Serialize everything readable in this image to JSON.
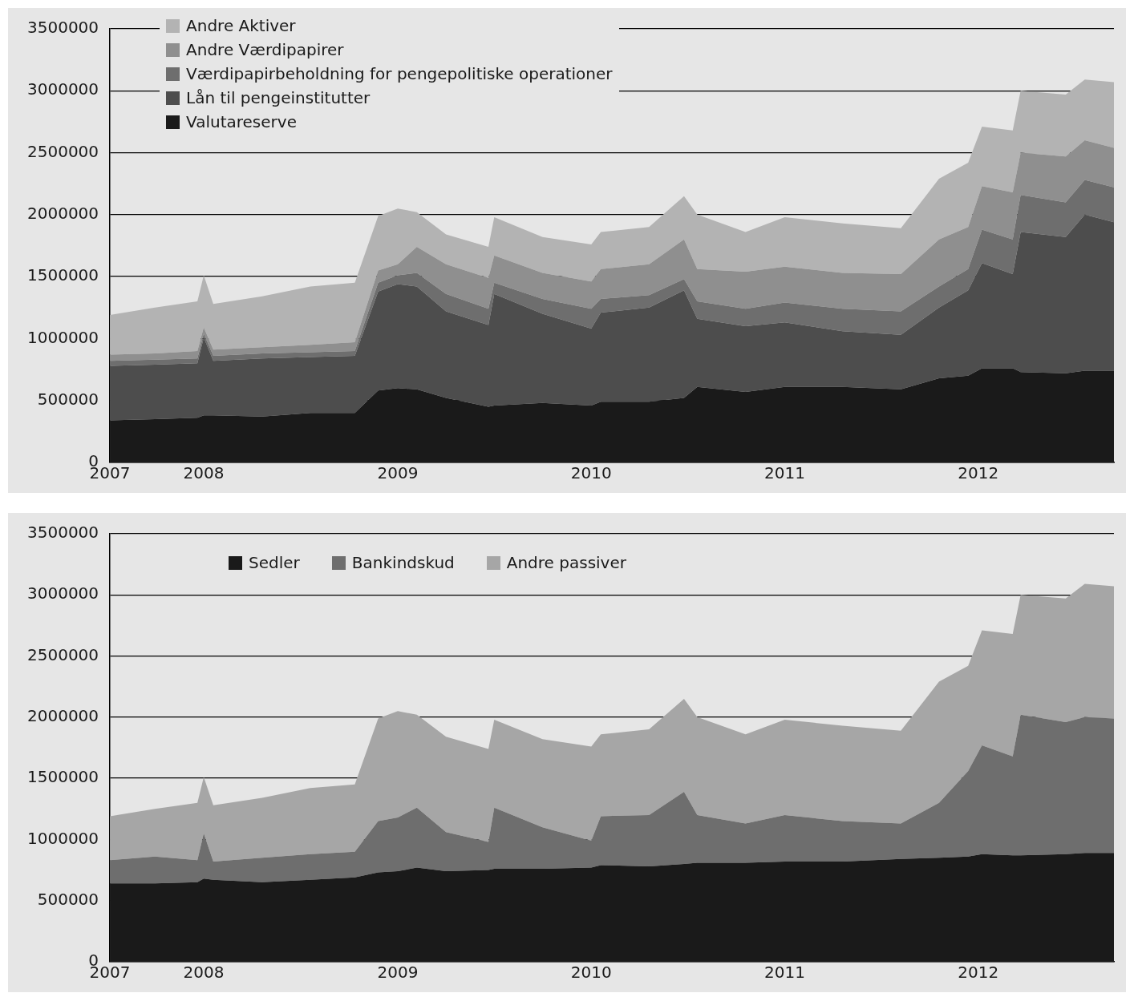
{
  "chart_data": [
    {
      "type": "area",
      "stacked": true,
      "legend": "top left",
      "grid": "y",
      "x": [
        "2007-07-08",
        "2007-10-01",
        "2007-12-20",
        "2008-01-01",
        "2008-01-19",
        "2008-04-20",
        "2008-07-20",
        "2008-10-12",
        "2008-11-25",
        "2009-01-01",
        "2009-02-06",
        "2009-04-02",
        "2009-06-21",
        "2009-07-02",
        "2009-10-01",
        "2010-01-01",
        "2010-01-19",
        "2010-04-20",
        "2010-06-25",
        "2010-07-20",
        "2010-10-19",
        "2011-01-01",
        "2011-04-20",
        "2011-08-08",
        "2011-10-19",
        "2011-12-13",
        "2012-01-08",
        "2012-03-06",
        "2012-03-21",
        "2012-06-14",
        "2012-07-20",
        "2012-09-13"
      ],
      "xlim": [
        "2007-07-08",
        "2012-09-13"
      ],
      "xticks": [
        {
          "value": "2007-07-08",
          "label": "2007"
        },
        "2008",
        "2009",
        "2010",
        "2011",
        "2012"
      ],
      "ylim": [
        0,
        3500000
      ],
      "yticks": [
        0,
        500000,
        1000000,
        1500000,
        2000000,
        2500000,
        3000000,
        3500000
      ],
      "series": [
        {
          "name": "Valutareserve",
          "color": "#1a1a1a",
          "values": [
            340000,
            350000,
            360000,
            380000,
            380000,
            370000,
            400000,
            400000,
            580000,
            600000,
            590000,
            520000,
            450000,
            460000,
            480000,
            460000,
            490000,
            490000,
            520000,
            610000,
            570000,
            610000,
            610000,
            590000,
            680000,
            700000,
            760000,
            760000,
            730000,
            720000,
            740000,
            740000
          ]
        },
        {
          "name": "Lån til pengeinstitutter",
          "color": "#4d4d4d",
          "values": [
            440000,
            440000,
            440000,
            630000,
            440000,
            470000,
            450000,
            460000,
            800000,
            840000,
            830000,
            700000,
            660000,
            900000,
            720000,
            620000,
            720000,
            760000,
            870000,
            550000,
            530000,
            520000,
            450000,
            440000,
            570000,
            690000,
            850000,
            760000,
            1130000,
            1100000,
            1260000,
            1200000
          ]
        },
        {
          "name": "Værdipapirbeholdning for pengepolitiske operationer",
          "color": "#6e6e6e",
          "values": [
            40000,
            40000,
            40000,
            30000,
            40000,
            40000,
            40000,
            40000,
            70000,
            70000,
            110000,
            140000,
            130000,
            90000,
            120000,
            160000,
            110000,
            100000,
            90000,
            140000,
            140000,
            160000,
            180000,
            190000,
            170000,
            170000,
            270000,
            280000,
            300000,
            280000,
            280000,
            280000
          ]
        },
        {
          "name": "Andre Værdipapirer",
          "color": "#8f8f8f",
          "values": [
            50000,
            50000,
            60000,
            50000,
            50000,
            50000,
            60000,
            70000,
            100000,
            90000,
            210000,
            240000,
            250000,
            220000,
            210000,
            220000,
            240000,
            250000,
            320000,
            260000,
            300000,
            290000,
            290000,
            300000,
            380000,
            340000,
            350000,
            380000,
            340000,
            370000,
            320000,
            320000
          ]
        },
        {
          "name": "Andre Aktiver",
          "color": "#b3b3b3",
          "values": [
            320000,
            370000,
            400000,
            420000,
            370000,
            410000,
            470000,
            480000,
            440000,
            450000,
            280000,
            240000,
            250000,
            310000,
            290000,
            300000,
            300000,
            300000,
            350000,
            440000,
            320000,
            400000,
            400000,
            370000,
            490000,
            520000,
            480000,
            500000,
            500000,
            500000,
            490000,
            530000
          ]
        }
      ]
    },
    {
      "type": "area",
      "stacked": true,
      "legend": "top",
      "grid": "y",
      "x": [
        "2007-07-08",
        "2007-10-01",
        "2007-12-20",
        "2008-01-01",
        "2008-01-19",
        "2008-04-20",
        "2008-07-20",
        "2008-10-12",
        "2008-11-25",
        "2009-01-01",
        "2009-02-06",
        "2009-04-02",
        "2009-06-21",
        "2009-07-02",
        "2009-10-01",
        "2010-01-01",
        "2010-01-19",
        "2010-04-20",
        "2010-06-25",
        "2010-07-20",
        "2010-10-19",
        "2011-01-01",
        "2011-04-20",
        "2011-08-08",
        "2011-10-19",
        "2011-12-13",
        "2012-01-08",
        "2012-03-06",
        "2012-03-21",
        "2012-06-14",
        "2012-07-20",
        "2012-09-13"
      ],
      "xlim": [
        "2007-07-08",
        "2012-09-13"
      ],
      "xticks": [
        {
          "value": "2007-07-08",
          "label": "2007"
        },
        "2008",
        "2009",
        "2010",
        "2011",
        "2012"
      ],
      "ylim": [
        0,
        3500000
      ],
      "yticks": [
        0,
        500000,
        1000000,
        1500000,
        2000000,
        2500000,
        3000000,
        3500000
      ],
      "series": [
        {
          "name": "Sedler",
          "color": "#1a1a1a",
          "values": [
            640000,
            640000,
            650000,
            680000,
            670000,
            650000,
            670000,
            690000,
            730000,
            740000,
            770000,
            740000,
            750000,
            760000,
            760000,
            770000,
            790000,
            780000,
            800000,
            810000,
            810000,
            820000,
            820000,
            840000,
            850000,
            860000,
            880000,
            870000,
            870000,
            880000,
            890000,
            890000
          ]
        },
        {
          "name": "Bankindskud",
          "color": "#6e6e6e",
          "values": [
            190000,
            220000,
            180000,
            370000,
            150000,
            200000,
            210000,
            210000,
            420000,
            440000,
            490000,
            320000,
            230000,
            500000,
            340000,
            220000,
            400000,
            420000,
            590000,
            390000,
            320000,
            380000,
            330000,
            290000,
            450000,
            700000,
            890000,
            810000,
            1150000,
            1080000,
            1110000,
            1100000
          ]
        },
        {
          "name": "Andre passiver",
          "color": "#a6a6a6",
          "values": [
            360000,
            390000,
            470000,
            460000,
            460000,
            490000,
            540000,
            550000,
            840000,
            870000,
            760000,
            780000,
            760000,
            720000,
            720000,
            770000,
            670000,
            700000,
            760000,
            800000,
            730000,
            780000,
            780000,
            760000,
            990000,
            860000,
            940000,
            1000000,
            980000,
            1010000,
            1090000,
            1080000
          ]
        }
      ]
    }
  ]
}
